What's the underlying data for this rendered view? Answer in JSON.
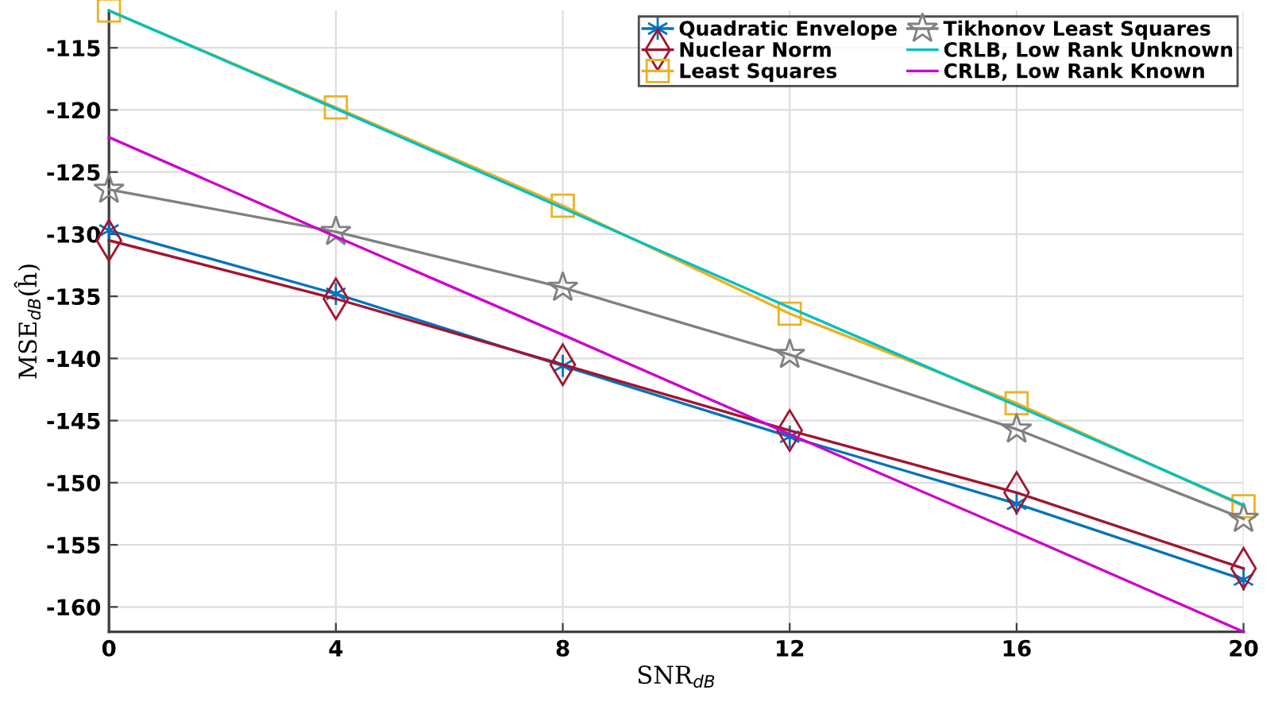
{
  "chart_data": {
    "type": "line",
    "xlabel": "SNR$_{dB}$",
    "ylabel": "MSE$_{dB}$(ĥ)",
    "x": [
      0,
      4,
      8,
      12,
      16,
      20
    ],
    "xlim": [
      0,
      20
    ],
    "xticks": [
      0,
      4,
      8,
      12,
      16,
      20
    ],
    "ylim": [
      -162,
      -112
    ],
    "yticks": [
      -160,
      -155,
      -150,
      -145,
      -140,
      -135,
      -130,
      -125,
      -120,
      -115
    ],
    "grid": true,
    "legend": "top right",
    "series": [
      {
        "name": "Quadratic Envelope",
        "color": "#0072bd",
        "marker": "cross",
        "values": [
          -129.7,
          -134.8,
          -140.6,
          -146.3,
          -151.7,
          -157.8
        ]
      },
      {
        "name": "Nuclear Norm",
        "color": "#a2142f",
        "marker": "diamond",
        "values": [
          -130.5,
          -135.2,
          -140.5,
          -145.8,
          -150.8,
          -156.9
        ]
      },
      {
        "name": "Least Squares",
        "color": "#edb120",
        "marker": "square",
        "values": [
          -112.0,
          -119.8,
          -127.7,
          -136.4,
          -143.6,
          -151.9
        ]
      },
      {
        "name": "Tikhonov Least Squares",
        "color": "#808080",
        "marker": "star",
        "values": [
          -126.4,
          -129.8,
          -134.3,
          -139.7,
          -145.7,
          -152.9
        ]
      },
      {
        "name": "CRLB, Low Rank Unknown",
        "color": "#00bfbf",
        "marker": "none",
        "values": [
          -112.0,
          -119.9,
          -127.9,
          -135.9,
          -143.8,
          -151.8
        ]
      },
      {
        "name": "CRLB, Low Rank Known",
        "color": "#cc00cc",
        "marker": "none",
        "values": [
          -122.2,
          -130.2,
          -138.1,
          -146.1,
          -154.0,
          -162.0
        ]
      }
    ]
  }
}
